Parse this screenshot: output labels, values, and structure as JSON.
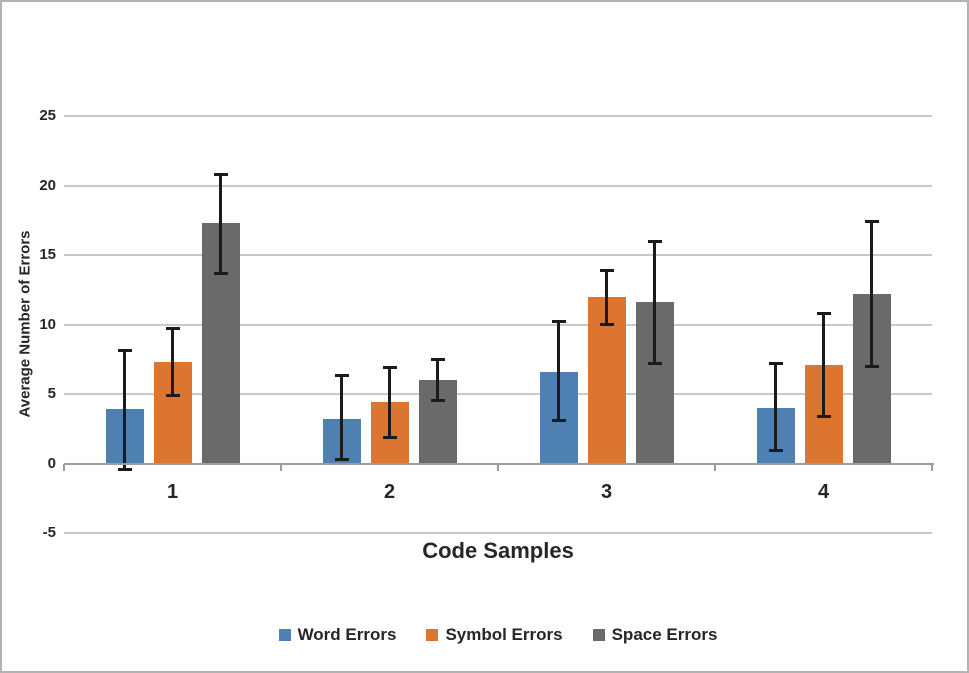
{
  "figure": {
    "background": "#FFFFFF",
    "border_color": "#B3B3B3"
  },
  "chart_data": {
    "type": "bar",
    "xlabel": "Code Samples",
    "ylabel": "Average Number of Errors",
    "categories": [
      "1",
      "2",
      "3",
      "4"
    ],
    "series": [
      {
        "name": "Word Errors",
        "color": "#4E80B2",
        "values": [
          3.9,
          3.2,
          6.6,
          4.0
        ],
        "error_low": [
          -0.4,
          0.3,
          3.1,
          0.9
        ],
        "error_high": [
          8.1,
          6.3,
          10.2,
          7.2
        ]
      },
      {
        "name": "Symbol Errors",
        "color": "#DC7530",
        "values": [
          7.3,
          4.4,
          12.0,
          7.1
        ],
        "error_low": [
          4.9,
          1.9,
          10.0,
          3.4
        ],
        "error_high": [
          9.7,
          6.9,
          13.9,
          10.8
        ]
      },
      {
        "name": "Space Errors",
        "color": "#6A6A6A",
        "values": [
          17.3,
          6.0,
          11.6,
          12.2
        ],
        "error_low": [
          13.7,
          4.5,
          7.2,
          7.0
        ],
        "error_high": [
          20.8,
          7.5,
          16.0,
          17.4
        ]
      }
    ],
    "y_axis": {
      "min": -5,
      "max": 25,
      "tick_step": 5,
      "ticks": [
        25,
        20,
        15,
        10,
        5,
        0,
        -5
      ]
    },
    "grid": true,
    "legend_position": "bottom",
    "error_bar_color": "#1B1B1B"
  }
}
